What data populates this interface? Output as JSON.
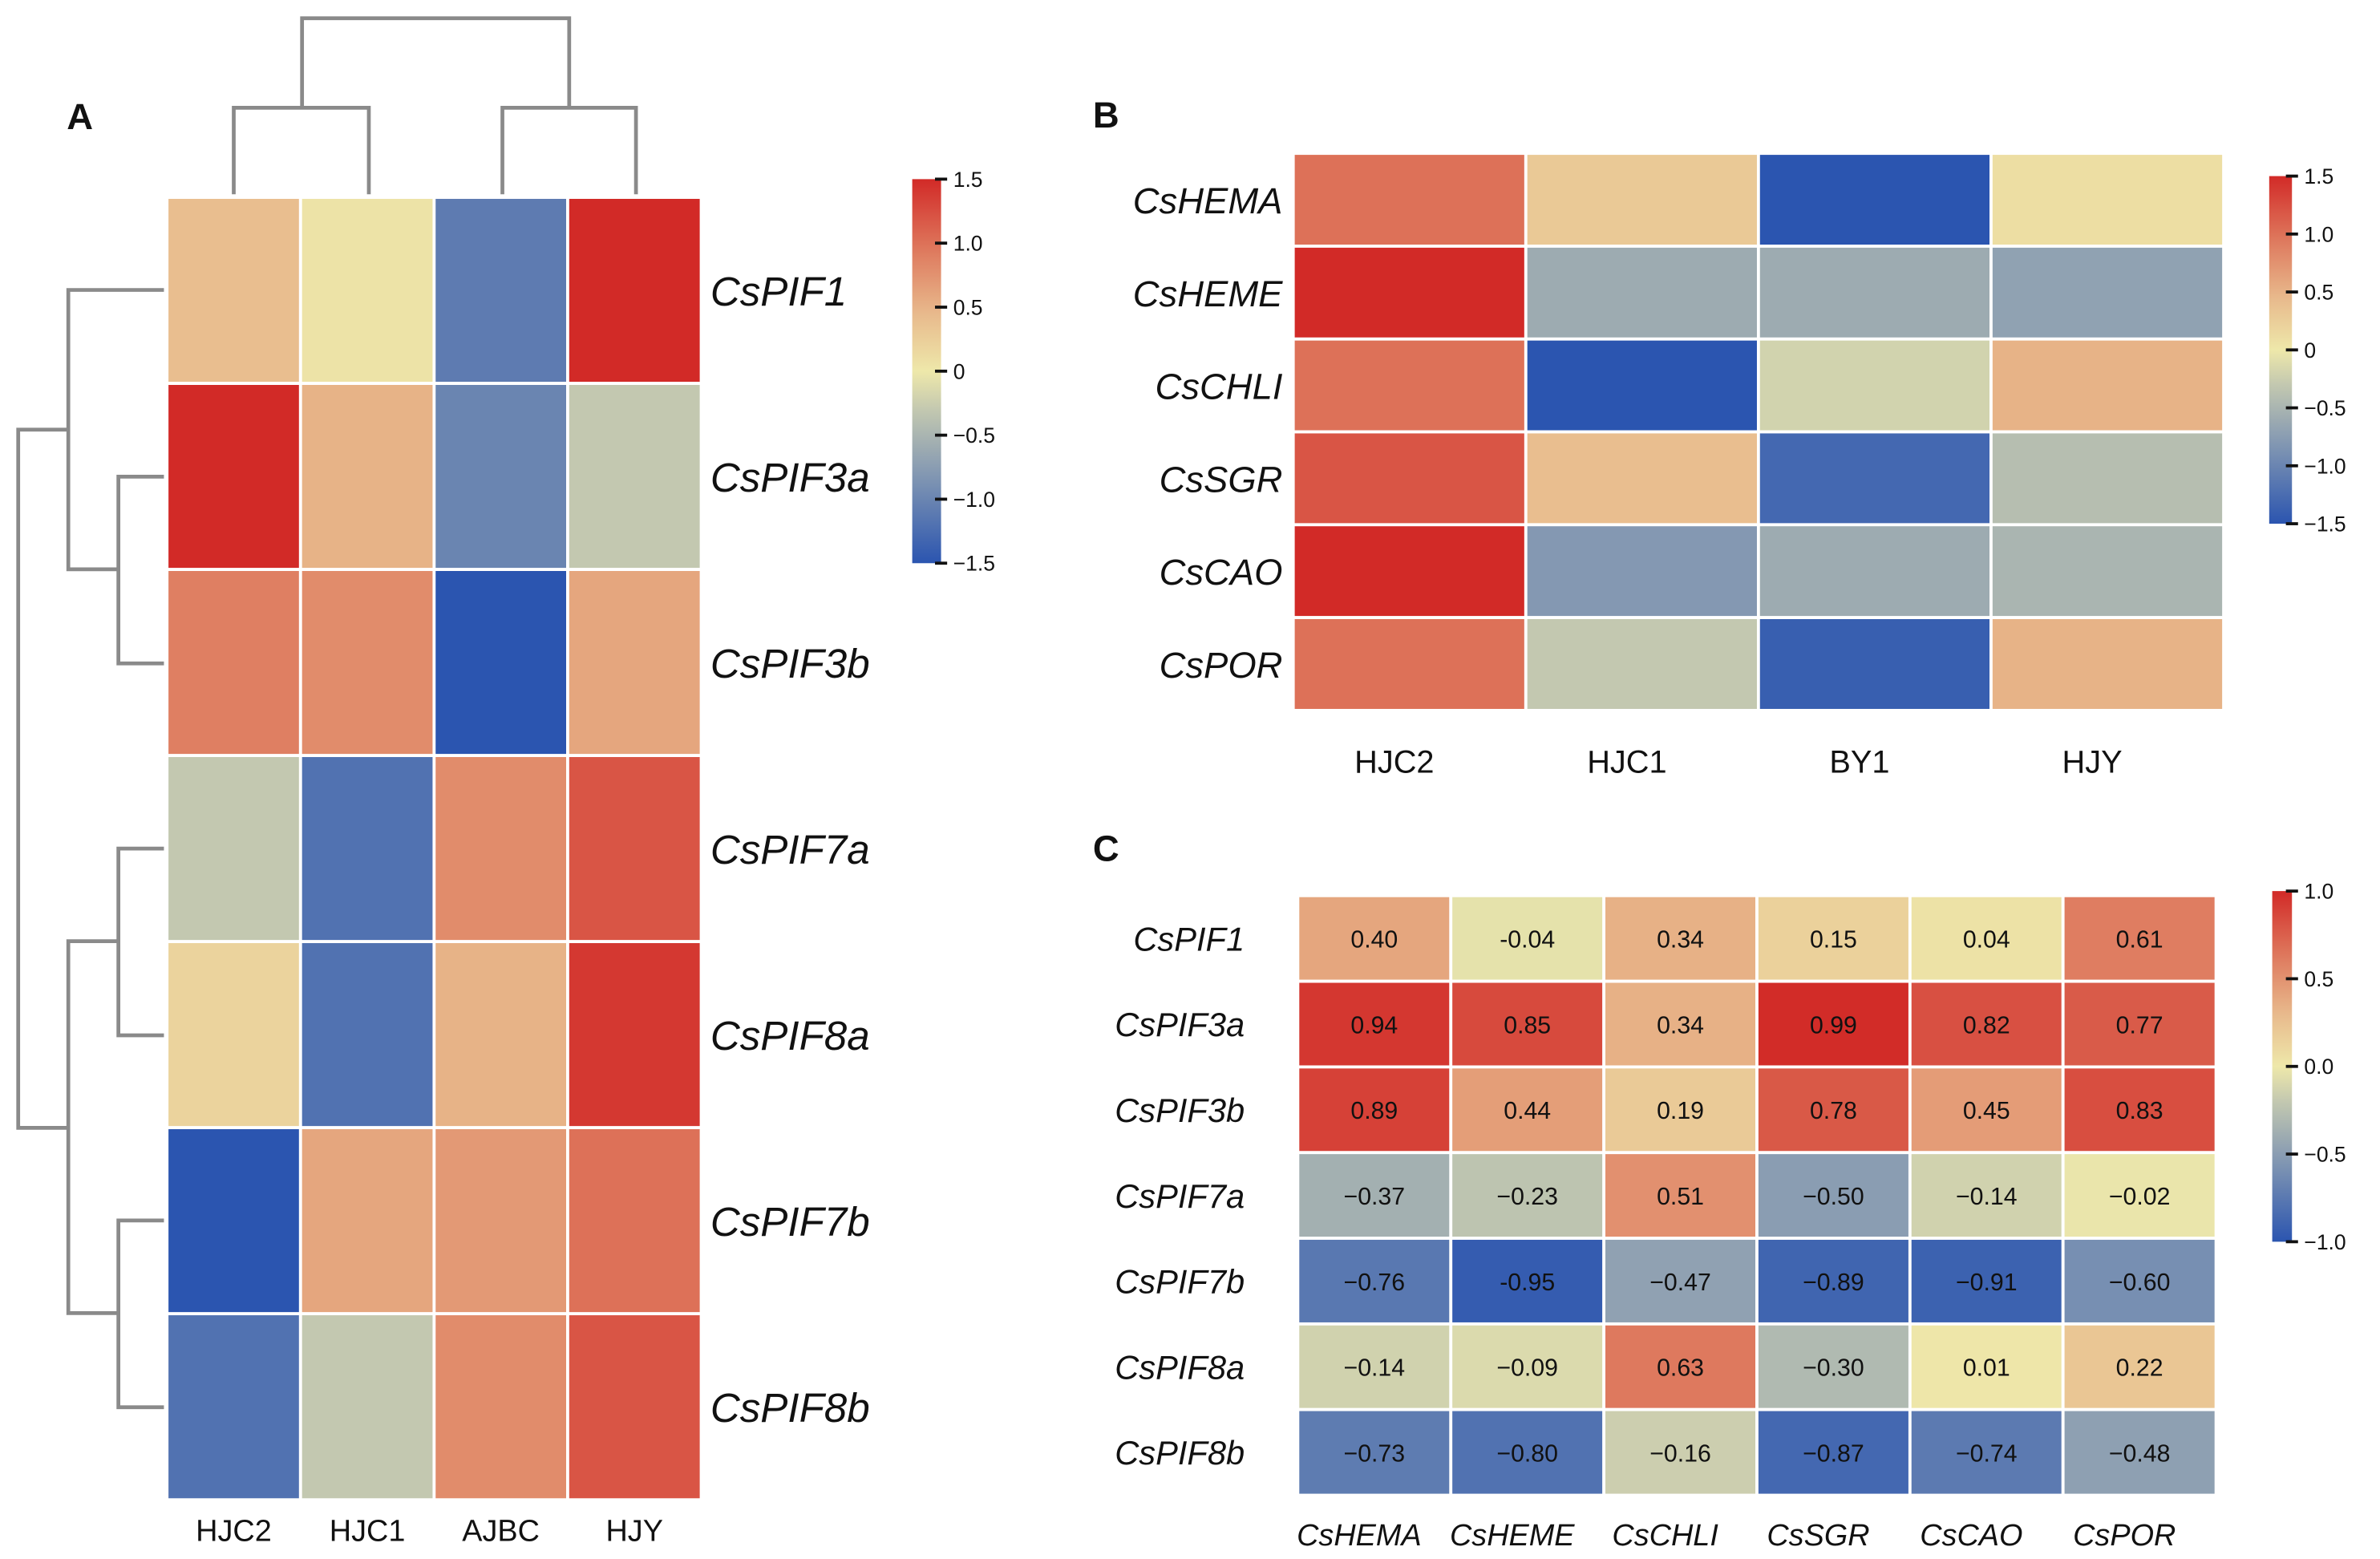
{
  "colors": {
    "scale": [
      "#2b55b0",
      "#8a9db2",
      "#c3c8b0",
      "#eee8aa",
      "#e8b98c",
      "#df7f62",
      "#d22a27"
    ],
    "dendrogram": "#8a8a8a"
  },
  "chart_data": [
    {
      "panel": "A",
      "type": "heatmap",
      "columns": [
        "HJC2",
        "HJC1",
        "AJBC",
        "HJY"
      ],
      "rows": [
        "CsPIF1",
        "CsPIF3a",
        "CsPIF3b",
        "CsPIF7a",
        "CsPIF8a",
        "CsPIF7b",
        "CsPIF8b"
      ],
      "values": [
        [
          0.4,
          0.05,
          -1.1,
          1.5
        ],
        [
          1.5,
          0.5,
          -1.0,
          -0.3
        ],
        [
          0.9,
          0.8,
          -1.5,
          0.6
        ],
        [
          -0.3,
          -1.2,
          0.8,
          1.2
        ],
        [
          0.2,
          -1.2,
          0.5,
          1.4
        ],
        [
          -1.5,
          0.6,
          0.7,
          1.0
        ],
        [
          -1.2,
          -0.3,
          0.8,
          1.2
        ]
      ],
      "colorbar": {
        "range": [
          -1.5,
          1.5
        ],
        "ticks": [
          "1.5",
          "1.0",
          "0.5",
          "0",
          "−0.5",
          "−1.0",
          "−1.5"
        ]
      },
      "dendrograms": {
        "columns": "((HJC2,HJC1),(AJBC,HJY))",
        "rows": "((CsPIF1,(CsPIF3a,CsPIF3b)),((CsPIF7a,CsPIF8a),(CsPIF7b,CsPIF8b)))"
      }
    },
    {
      "panel": "B",
      "type": "heatmap",
      "columns": [
        "HJC2",
        "HJC1",
        "BY1",
        "HJY"
      ],
      "rows": [
        "CsHEMA",
        "CsHEME",
        "CsCHLI",
        "CsSGR",
        "CsCAO",
        "CsPOR"
      ],
      "values": [
        [
          1.0,
          0.3,
          -1.5,
          0.1
        ],
        [
          1.5,
          -0.6,
          -0.6,
          -0.7
        ],
        [
          1.0,
          -1.5,
          -0.2,
          0.5
        ],
        [
          1.2,
          0.4,
          -1.3,
          -0.4
        ],
        [
          1.5,
          -0.8,
          -0.6,
          -0.5
        ],
        [
          1.0,
          -0.3,
          -1.4,
          0.5
        ]
      ],
      "colorbar": {
        "range": [
          -1.5,
          1.5
        ],
        "ticks": [
          "1.5",
          "1.0",
          "0.5",
          "0",
          "−0.5",
          "−1.0",
          "−1.5"
        ]
      }
    },
    {
      "panel": "C",
      "type": "heatmap",
      "columns": [
        "CsHEMA",
        "CsHEME",
        "CsCHLI",
        "CsSGR",
        "CsCAO",
        "CsPOR"
      ],
      "rows": [
        "CsPIF1",
        "CsPIF3a",
        "CsPIF3b",
        "CsPIF7a",
        "CsPIF7b",
        "CsPIF8a",
        "CsPIF8b"
      ],
      "values": [
        [
          0.4,
          -0.04,
          0.34,
          0.15,
          0.04,
          0.61
        ],
        [
          0.94,
          0.85,
          0.34,
          0.99,
          0.82,
          0.77
        ],
        [
          0.89,
          0.44,
          0.19,
          0.78,
          0.45,
          0.83
        ],
        [
          -0.37,
          -0.23,
          0.51,
          -0.5,
          -0.14,
          -0.02
        ],
        [
          -0.76,
          -0.95,
          -0.47,
          -0.89,
          -0.91,
          -0.6
        ],
        [
          -0.14,
          -0.09,
          0.63,
          -0.3,
          0.01,
          0.22
        ],
        [
          -0.73,
          -0.8,
          -0.16,
          -0.87,
          -0.74,
          -0.48
        ]
      ],
      "cell_labels": [
        [
          "0.40",
          "-0.04",
          "0.34",
          "0.15",
          "0.04",
          "0.61"
        ],
        [
          "0.94",
          "0.85",
          "0.34",
          "0.99",
          "0.82",
          "0.77"
        ],
        [
          "0.89",
          "0.44",
          "0.19",
          "0.78",
          "0.45",
          "0.83"
        ],
        [
          "−0.37",
          "−0.23",
          "0.51",
          "−0.50",
          "−0.14",
          "−0.02"
        ],
        [
          "−0.76",
          "-0.95",
          "−0.47",
          "−0.89",
          "−0.91",
          "−0.60"
        ],
        [
          "−0.14",
          "−0.09",
          "0.63",
          "−0.30",
          "0.01",
          "0.22"
        ],
        [
          "−0.73",
          "−0.80",
          "−0.16",
          "−0.87",
          "−0.74",
          "−0.48"
        ]
      ],
      "colorbar": {
        "range": [
          -1.0,
          1.0
        ],
        "ticks": [
          "1.0",
          "0.5",
          "0.0",
          "−0.5",
          "−1.0"
        ]
      }
    }
  ]
}
